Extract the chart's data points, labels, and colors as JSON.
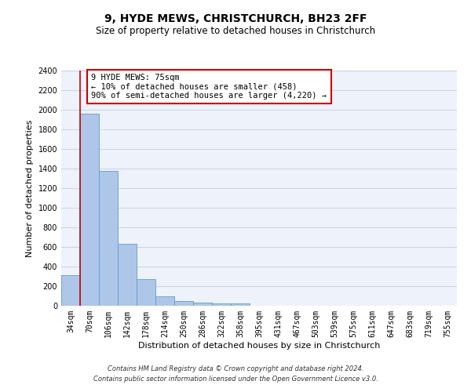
{
  "title": "9, HYDE MEWS, CHRISTCHURCH, BH23 2FF",
  "subtitle": "Size of property relative to detached houses in Christchurch",
  "xlabel": "Distribution of detached houses by size in Christchurch",
  "ylabel": "Number of detached properties",
  "categories": [
    "34sqm",
    "70sqm",
    "106sqm",
    "142sqm",
    "178sqm",
    "214sqm",
    "250sqm",
    "286sqm",
    "322sqm",
    "358sqm",
    "395sqm",
    "431sqm",
    "467sqm",
    "503sqm",
    "539sqm",
    "575sqm",
    "611sqm",
    "647sqm",
    "683sqm",
    "719sqm",
    "755sqm"
  ],
  "bar_values": [
    315,
    1960,
    1380,
    630,
    270,
    100,
    48,
    35,
    28,
    22,
    0,
    0,
    0,
    0,
    0,
    0,
    0,
    0,
    0,
    0,
    0
  ],
  "bar_color": "#aec6e8",
  "bar_edge_color": "#5a9fd4",
  "vline_color": "#cc0000",
  "vline_x_index": 1,
  "ylim": [
    0,
    2400
  ],
  "yticks": [
    0,
    200,
    400,
    600,
    800,
    1000,
    1200,
    1400,
    1600,
    1800,
    2000,
    2200,
    2400
  ],
  "annotation_text": "9 HYDE MEWS: 75sqm\n← 10% of detached houses are smaller (458)\n90% of semi-detached houses are larger (4,220) →",
  "annotation_box_color": "#ffffff",
  "annotation_box_edge": "#cc0000",
  "footer1": "Contains HM Land Registry data © Crown copyright and database right 2024.",
  "footer2": "Contains public sector information licensed under the Open Government Licence v3.0.",
  "bg_color": "#eef2fa",
  "grid_color": "#c8d0e8",
  "title_fontsize": 10,
  "subtitle_fontsize": 8.5,
  "ylabel_fontsize": 8,
  "xlabel_fontsize": 8,
  "tick_fontsize": 7,
  "annotation_fontsize": 7.5,
  "footer_fontsize": 6
}
